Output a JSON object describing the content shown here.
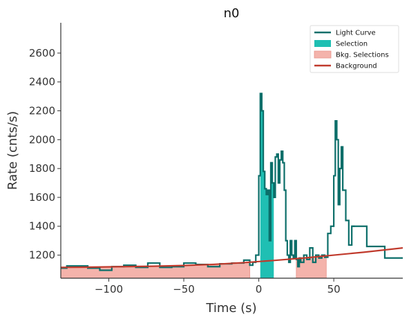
{
  "chart_data": {
    "type": "line",
    "title": "n0",
    "xlabel": "Time (s)",
    "ylabel": "Rate (cnts/s)",
    "xlim": [
      -132,
      96
    ],
    "ylim": [
      1040,
      2810
    ],
    "x_ticks": [
      -100,
      -50,
      0,
      50
    ],
    "x_tick_labels": [
      "−100",
      "−50",
      "0",
      "50"
    ],
    "y_ticks": [
      1200,
      1400,
      1600,
      1800,
      2000,
      2200,
      2400,
      2600
    ],
    "y_tick_labels": [
      "1200",
      "1400",
      "1600",
      "1800",
      "2000",
      "2200",
      "2400",
      "2600"
    ],
    "grid": false,
    "legend_position": "top-right",
    "legend": [
      {
        "label": "Light Curve",
        "kind": "line",
        "color": "#0b6e69"
      },
      {
        "label": "Selection",
        "kind": "patch",
        "color": "#1fbfb3"
      },
      {
        "label": "Bkg. Selections",
        "kind": "patch",
        "color": "#f4b3ab"
      },
      {
        "label": "Background",
        "kind": "line",
        "color": "#c0392b"
      }
    ],
    "light_curve": {
      "name": "Light Curve",
      "color": "#0b6e69",
      "x": [
        -132,
        -128,
        -122,
        -114,
        -106,
        -98,
        -90,
        -82,
        -74,
        -66,
        -58,
        -50,
        -42,
        -34,
        -26,
        -18,
        -10,
        -6,
        -4,
        -2,
        0,
        1,
        2,
        3,
        4,
        5,
        6,
        7,
        8,
        9,
        10,
        11,
        12,
        13,
        14,
        15,
        16,
        17,
        18,
        19,
        20,
        21,
        22,
        23,
        24,
        25,
        26,
        27,
        28,
        30,
        32,
        34,
        36,
        38,
        40,
        42,
        44,
        46,
        48,
        50,
        51,
        52,
        53,
        54,
        55,
        56,
        58,
        60,
        62,
        64
      ],
      "y": [
        1110,
        1125,
        1125,
        1110,
        1095,
        1120,
        1130,
        1115,
        1145,
        1115,
        1120,
        1145,
        1135,
        1120,
        1140,
        1145,
        1165,
        1130,
        1150,
        1200,
        1750,
        2320,
        2200,
        1780,
        1660,
        1620,
        1650,
        1300,
        1840,
        1700,
        1600,
        1880,
        1900,
        1700,
        1860,
        1920,
        1840,
        1650,
        1300,
        1200,
        1150,
        1300,
        1200,
        1180,
        1300,
        1170,
        1120,
        1180,
        1150,
        1200,
        1170,
        1250,
        1150,
        1200,
        1180,
        1200,
        1185,
        1350,
        1400,
        1750,
        2130,
        2000,
        1550,
        1800,
        1950,
        1650,
        1440,
        1270,
        1400,
        1400
      ]
    },
    "light_curve_tail": {
      "x": [
        62,
        64,
        68,
        72,
        76,
        80,
        84,
        88,
        92,
        96
      ],
      "y": [
        1400,
        1400,
        1400,
        1260,
        1260,
        1260,
        1180,
        1180,
        1180,
        1180
      ]
    },
    "selection": {
      "name": "Selection",
      "color": "#1fbfb3",
      "x_range": [
        1,
        10
      ]
    },
    "bkg_selections": {
      "name": "Bkg. Selections",
      "color": "#f4b3ab",
      "ranges": [
        [
          -132,
          -6
        ],
        [
          25,
          45
        ]
      ]
    },
    "background": {
      "name": "Background",
      "color": "#c0392b",
      "x": [
        -132,
        -110,
        -90,
        -70,
        -50,
        -30,
        -10,
        10,
        30,
        50,
        70,
        96
      ],
      "y": [
        1115,
        1117,
        1120,
        1123,
        1128,
        1136,
        1148,
        1163,
        1180,
        1200,
        1220,
        1250
      ]
    }
  }
}
